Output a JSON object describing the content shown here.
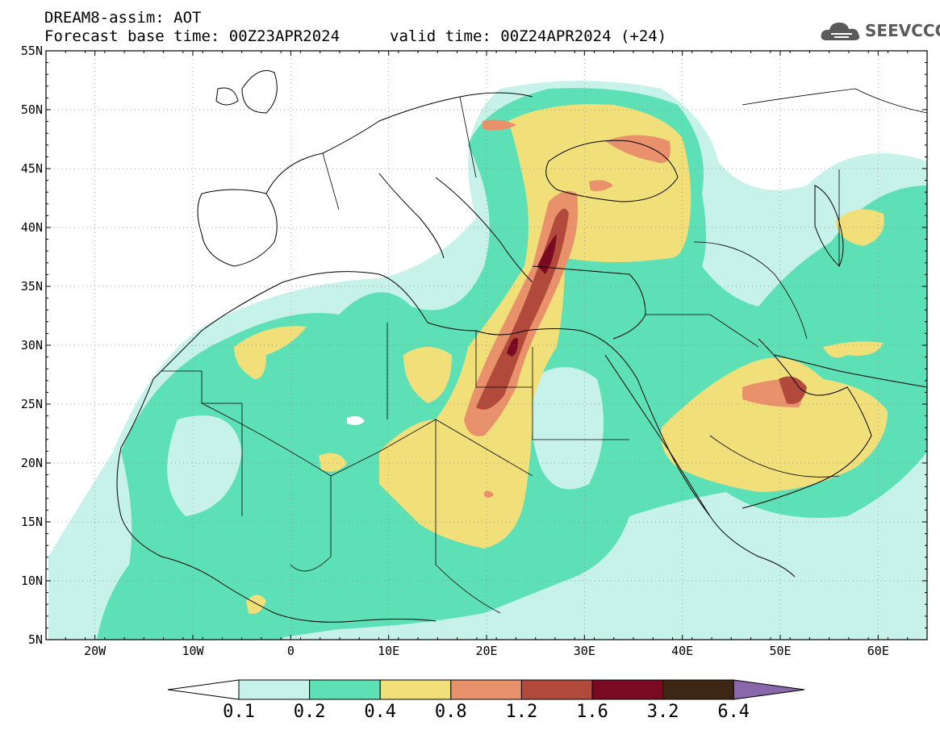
{
  "header": {
    "model_title": "DREAM8-assim: AOT",
    "base_time": "Forecast base time: 00Z23APR2024",
    "valid_time": "valid time: 00Z24APR2024 (+24)",
    "logo_text": "SEEVCCC"
  },
  "map": {
    "lon_range": [
      -25,
      65
    ],
    "lat_range": [
      5,
      55
    ],
    "lat_labels": [
      "55N",
      "50N",
      "45N",
      "40N",
      "35N",
      "30N",
      "25N",
      "20N",
      "15N",
      "10N",
      "5N"
    ],
    "lon_labels": [
      "20W",
      "10W",
      "0",
      "10E",
      "20E",
      "30E",
      "40E",
      "50E",
      "60E"
    ]
  },
  "colorbar": {
    "labels": [
      "0.1",
      "0.2",
      "0.4",
      "0.8",
      "1.2",
      "1.6",
      "3.2",
      "6.4"
    ],
    "colors": [
      "#c6f2ea",
      "#5ee0b6",
      "#f1e07a",
      "#e8916a",
      "#b24a3c",
      "#7a0a22",
      "#3e2614",
      "#8a66aa"
    ]
  }
}
